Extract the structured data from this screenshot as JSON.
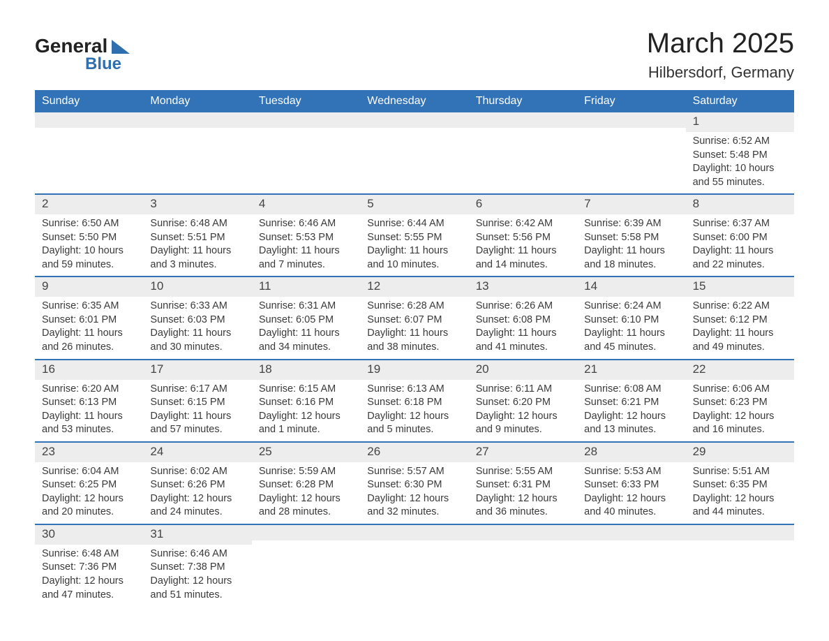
{
  "logo": {
    "text1": "General",
    "text2": "Blue"
  },
  "title": "March 2025",
  "location": "Hilbersdorf, Germany",
  "colors": {
    "header_bg": "#3273b8",
    "header_text": "#ffffff",
    "daynum_bg": "#ededed",
    "border": "#3273b8",
    "body_text": "#3a3a3a",
    "page_bg": "#ffffff",
    "logo_accent": "#2f6fb0"
  },
  "typography": {
    "title_fontsize": 40,
    "location_fontsize": 22,
    "dayheader_fontsize": 16,
    "daynum_fontsize": 17,
    "body_fontsize": 14.5
  },
  "day_headers": [
    "Sunday",
    "Monday",
    "Tuesday",
    "Wednesday",
    "Thursday",
    "Friday",
    "Saturday"
  ],
  "weeks": [
    [
      null,
      null,
      null,
      null,
      null,
      null,
      {
        "n": "1",
        "sr": "6:52 AM",
        "ss": "5:48 PM",
        "dl": "10 hours and 55 minutes."
      }
    ],
    [
      {
        "n": "2",
        "sr": "6:50 AM",
        "ss": "5:50 PM",
        "dl": "10 hours and 59 minutes."
      },
      {
        "n": "3",
        "sr": "6:48 AM",
        "ss": "5:51 PM",
        "dl": "11 hours and 3 minutes."
      },
      {
        "n": "4",
        "sr": "6:46 AM",
        "ss": "5:53 PM",
        "dl": "11 hours and 7 minutes."
      },
      {
        "n": "5",
        "sr": "6:44 AM",
        "ss": "5:55 PM",
        "dl": "11 hours and 10 minutes."
      },
      {
        "n": "6",
        "sr": "6:42 AM",
        "ss": "5:56 PM",
        "dl": "11 hours and 14 minutes."
      },
      {
        "n": "7",
        "sr": "6:39 AM",
        "ss": "5:58 PM",
        "dl": "11 hours and 18 minutes."
      },
      {
        "n": "8",
        "sr": "6:37 AM",
        "ss": "6:00 PM",
        "dl": "11 hours and 22 minutes."
      }
    ],
    [
      {
        "n": "9",
        "sr": "6:35 AM",
        "ss": "6:01 PM",
        "dl": "11 hours and 26 minutes."
      },
      {
        "n": "10",
        "sr": "6:33 AM",
        "ss": "6:03 PM",
        "dl": "11 hours and 30 minutes."
      },
      {
        "n": "11",
        "sr": "6:31 AM",
        "ss": "6:05 PM",
        "dl": "11 hours and 34 minutes."
      },
      {
        "n": "12",
        "sr": "6:28 AM",
        "ss": "6:07 PM",
        "dl": "11 hours and 38 minutes."
      },
      {
        "n": "13",
        "sr": "6:26 AM",
        "ss": "6:08 PM",
        "dl": "11 hours and 41 minutes."
      },
      {
        "n": "14",
        "sr": "6:24 AM",
        "ss": "6:10 PM",
        "dl": "11 hours and 45 minutes."
      },
      {
        "n": "15",
        "sr": "6:22 AM",
        "ss": "6:12 PM",
        "dl": "11 hours and 49 minutes."
      }
    ],
    [
      {
        "n": "16",
        "sr": "6:20 AM",
        "ss": "6:13 PM",
        "dl": "11 hours and 53 minutes."
      },
      {
        "n": "17",
        "sr": "6:17 AM",
        "ss": "6:15 PM",
        "dl": "11 hours and 57 minutes."
      },
      {
        "n": "18",
        "sr": "6:15 AM",
        "ss": "6:16 PM",
        "dl": "12 hours and 1 minute."
      },
      {
        "n": "19",
        "sr": "6:13 AM",
        "ss": "6:18 PM",
        "dl": "12 hours and 5 minutes."
      },
      {
        "n": "20",
        "sr": "6:11 AM",
        "ss": "6:20 PM",
        "dl": "12 hours and 9 minutes."
      },
      {
        "n": "21",
        "sr": "6:08 AM",
        "ss": "6:21 PM",
        "dl": "12 hours and 13 minutes."
      },
      {
        "n": "22",
        "sr": "6:06 AM",
        "ss": "6:23 PM",
        "dl": "12 hours and 16 minutes."
      }
    ],
    [
      {
        "n": "23",
        "sr": "6:04 AM",
        "ss": "6:25 PM",
        "dl": "12 hours and 20 minutes."
      },
      {
        "n": "24",
        "sr": "6:02 AM",
        "ss": "6:26 PM",
        "dl": "12 hours and 24 minutes."
      },
      {
        "n": "25",
        "sr": "5:59 AM",
        "ss": "6:28 PM",
        "dl": "12 hours and 28 minutes."
      },
      {
        "n": "26",
        "sr": "5:57 AM",
        "ss": "6:30 PM",
        "dl": "12 hours and 32 minutes."
      },
      {
        "n": "27",
        "sr": "5:55 AM",
        "ss": "6:31 PM",
        "dl": "12 hours and 36 minutes."
      },
      {
        "n": "28",
        "sr": "5:53 AM",
        "ss": "6:33 PM",
        "dl": "12 hours and 40 minutes."
      },
      {
        "n": "29",
        "sr": "5:51 AM",
        "ss": "6:35 PM",
        "dl": "12 hours and 44 minutes."
      }
    ],
    [
      {
        "n": "30",
        "sr": "6:48 AM",
        "ss": "7:36 PM",
        "dl": "12 hours and 47 minutes."
      },
      {
        "n": "31",
        "sr": "6:46 AM",
        "ss": "7:38 PM",
        "dl": "12 hours and 51 minutes."
      },
      null,
      null,
      null,
      null,
      null
    ]
  ],
  "labels": {
    "sunrise": "Sunrise: ",
    "sunset": "Sunset: ",
    "daylight": "Daylight: "
  }
}
